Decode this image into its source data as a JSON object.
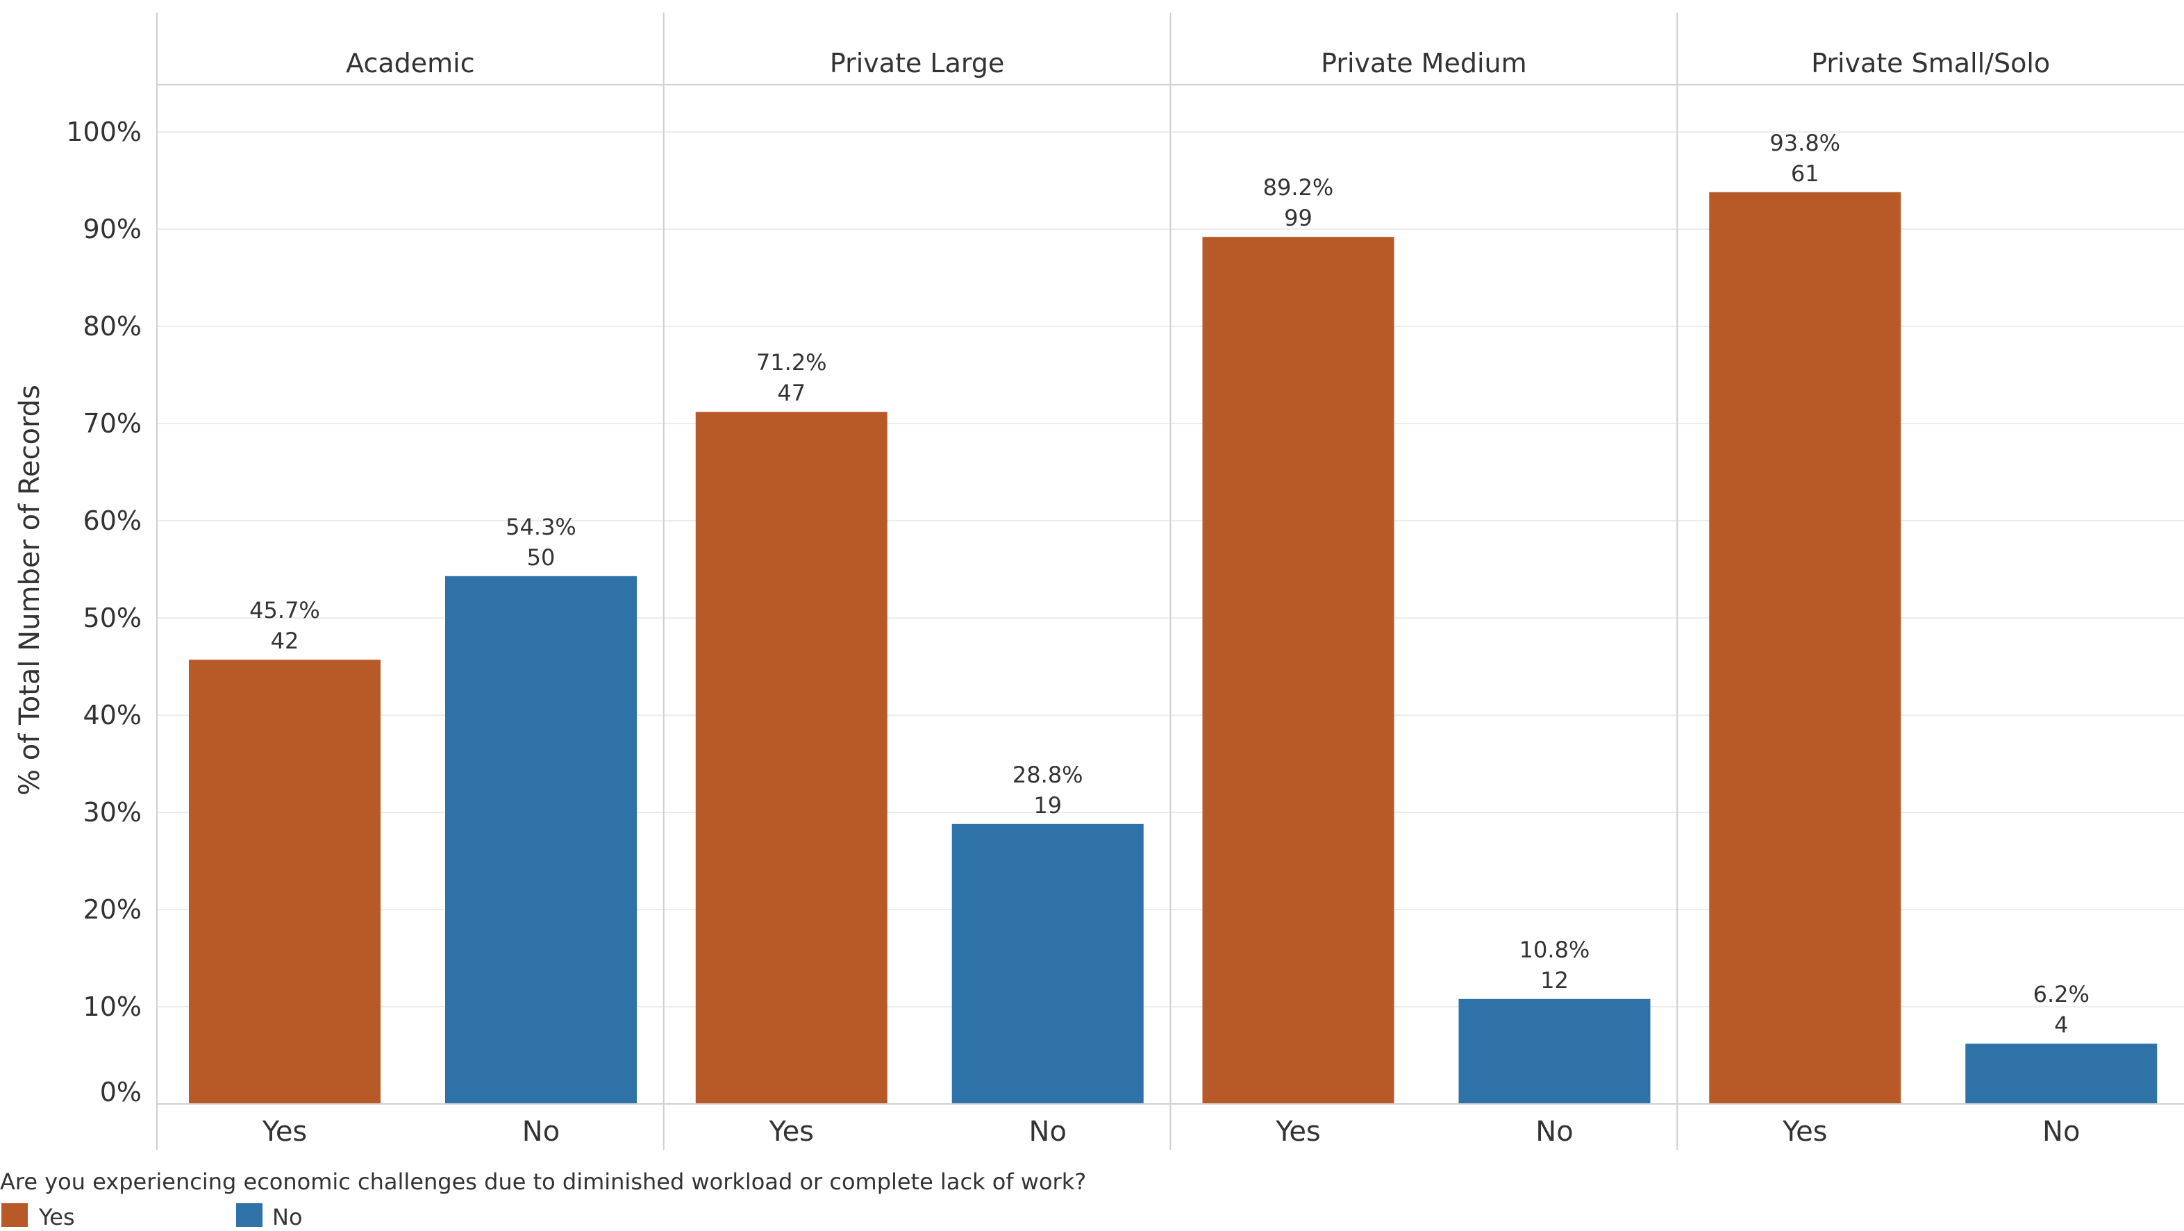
{
  "chart_data": {
    "type": "bar",
    "ylabel": "% of Total Number of Records",
    "ylim": [
      0,
      100
    ],
    "yticks": [
      "0%",
      "10%",
      "20%",
      "30%",
      "40%",
      "50%",
      "60%",
      "70%",
      "80%",
      "90%",
      "100%"
    ],
    "categories": [
      "Yes",
      "No"
    ],
    "colors": {
      "Yes": "#b85a27",
      "No": "#2e72a8"
    },
    "panels": [
      {
        "name": "Academic",
        "bars": [
          {
            "category": "Yes",
            "percent": 45.7,
            "percent_label": "45.7%",
            "count": "42"
          },
          {
            "category": "No",
            "percent": 54.3,
            "percent_label": "54.3%",
            "count": "50"
          }
        ]
      },
      {
        "name": "Private Large",
        "bars": [
          {
            "category": "Yes",
            "percent": 71.2,
            "percent_label": "71.2%",
            "count": "47"
          },
          {
            "category": "No",
            "percent": 28.8,
            "percent_label": "28.8%",
            "count": "19"
          }
        ]
      },
      {
        "name": "Private Medium",
        "bars": [
          {
            "category": "Yes",
            "percent": 89.2,
            "percent_label": "89.2%",
            "count": "99"
          },
          {
            "category": "No",
            "percent": 10.8,
            "percent_label": "10.8%",
            "count": "12"
          }
        ]
      },
      {
        "name": "Private Small/Solo",
        "bars": [
          {
            "category": "Yes",
            "percent": 93.8,
            "percent_label": "93.8%",
            "count": "61"
          },
          {
            "category": "No",
            "percent": 6.2,
            "percent_label": "6.2%",
            "count": "4"
          }
        ]
      }
    ],
    "legend": {
      "title": "Are you experiencing economic challenges due to diminished workload or complete lack of work?",
      "placement": "bottom-left",
      "items": [
        {
          "label": "Yes",
          "color": "#b85a27"
        },
        {
          "label": "No",
          "color": "#2e72a8"
        }
      ]
    }
  }
}
